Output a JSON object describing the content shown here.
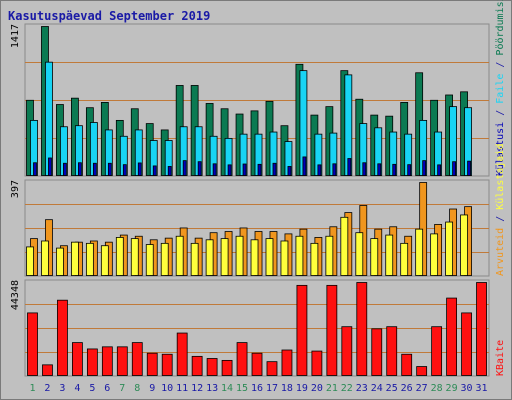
{
  "title": "Kasutuspäevad September 2019",
  "colors": {
    "background": "#c0c0c0",
    "title": "#1a1aa6",
    "weekend_day": "#2e8b57",
    "weekday_day": "#1a1aa6",
    "gridline": "#c07a3a",
    "pages": "#0b7a52",
    "files": "#18d4f4",
    "visits": "#0000b8",
    "hosts": "#f0961e",
    "visitors": "#ffff3c",
    "kb": "#ff1010"
  },
  "legend": {
    "panel1": [
      "Pöördumisi",
      "Faile",
      "Külastusi"
    ],
    "panel2": [
      "Külastajaid",
      "Arvuteid"
    ],
    "panel3": [
      "KBaite"
    ],
    "separator": "/"
  },
  "chart_data": {
    "type": "bar",
    "x": [
      "1",
      "2",
      "3",
      "4",
      "5",
      "6",
      "7",
      "8",
      "9",
      "10",
      "11",
      "12",
      "13",
      "14",
      "15",
      "16",
      "17",
      "18",
      "19",
      "20",
      "21",
      "22",
      "23",
      "24",
      "25",
      "26",
      "27",
      "28",
      "29",
      "30",
      "31"
    ],
    "weekend_days": [
      "1",
      "7",
      "8",
      "14",
      "15",
      "21",
      "22",
      "28",
      "29"
    ],
    "panels": [
      {
        "max_label": "1417",
        "ylim": [
          0,
          1417
        ],
        "series": [
          {
            "name": "Pöördumisi",
            "values": [
              720,
              1417,
              680,
              740,
              650,
              700,
              530,
              640,
              500,
              440,
              860,
              860,
              690,
              640,
              590,
              620,
              710,
              480,
              1060,
              580,
              660,
              1000,
              730,
              580,
              570,
              700,
              980,
              720,
              770,
              800,
              0
            ]
          },
          {
            "name": "Faile",
            "values": [
              530,
              1080,
              470,
              480,
              510,
              440,
              380,
              440,
              340,
              340,
              470,
              470,
              380,
              360,
              400,
              400,
              420,
              330,
              1000,
              400,
              410,
              960,
              500,
              460,
              420,
              400,
              530,
              420,
              660,
              650,
              0
            ]
          },
          {
            "name": "Külastusi",
            "values": [
              130,
              175,
              125,
              130,
              125,
              125,
              112,
              128,
              100,
              95,
              150,
              140,
              120,
              110,
              118,
              115,
              125,
              95,
              185,
              110,
              120,
              170,
              130,
              120,
              115,
              112,
              150,
              110,
              140,
              145,
              0
            ]
          }
        ]
      },
      {
        "max_label": "397",
        "ylim": [
          0,
          397
        ],
        "series": [
          {
            "name": "Arvuteid",
            "values": [
              160,
              240,
              130,
              145,
              150,
              145,
              175,
              170,
              155,
              162,
              205,
              162,
              185,
              190,
              205,
              190,
              190,
              180,
              200,
              165,
              210,
              270,
              300,
              200,
              210,
              170,
              397,
              220,
              285,
              295,
              0
            ]
          },
          {
            "name": "Külastajaid",
            "values": [
              125,
              150,
              120,
              145,
              140,
              130,
              165,
              160,
              135,
              140,
              170,
              140,
              155,
              160,
              170,
              155,
              160,
              150,
              170,
              140,
              170,
              250,
              185,
              160,
              175,
              140,
              200,
              180,
              230,
              260,
              0
            ]
          }
        ]
      },
      {
        "max_label": "44348",
        "ylim": [
          0,
          44348
        ],
        "series": [
          {
            "name": "KBaite",
            "values": [
              30000,
              5500,
              36000,
              16000,
              13000,
              14000,
              14000,
              16000,
              11000,
              10500,
              20500,
              9500,
              8500,
              7600,
              16000,
              11000,
              7000,
              12500,
              43000,
              12000,
              43000,
              23500,
              44348,
              22500,
              23500,
              10500,
              4700,
              23500,
              37000,
              30000,
              44348
            ]
          }
        ]
      }
    ]
  }
}
